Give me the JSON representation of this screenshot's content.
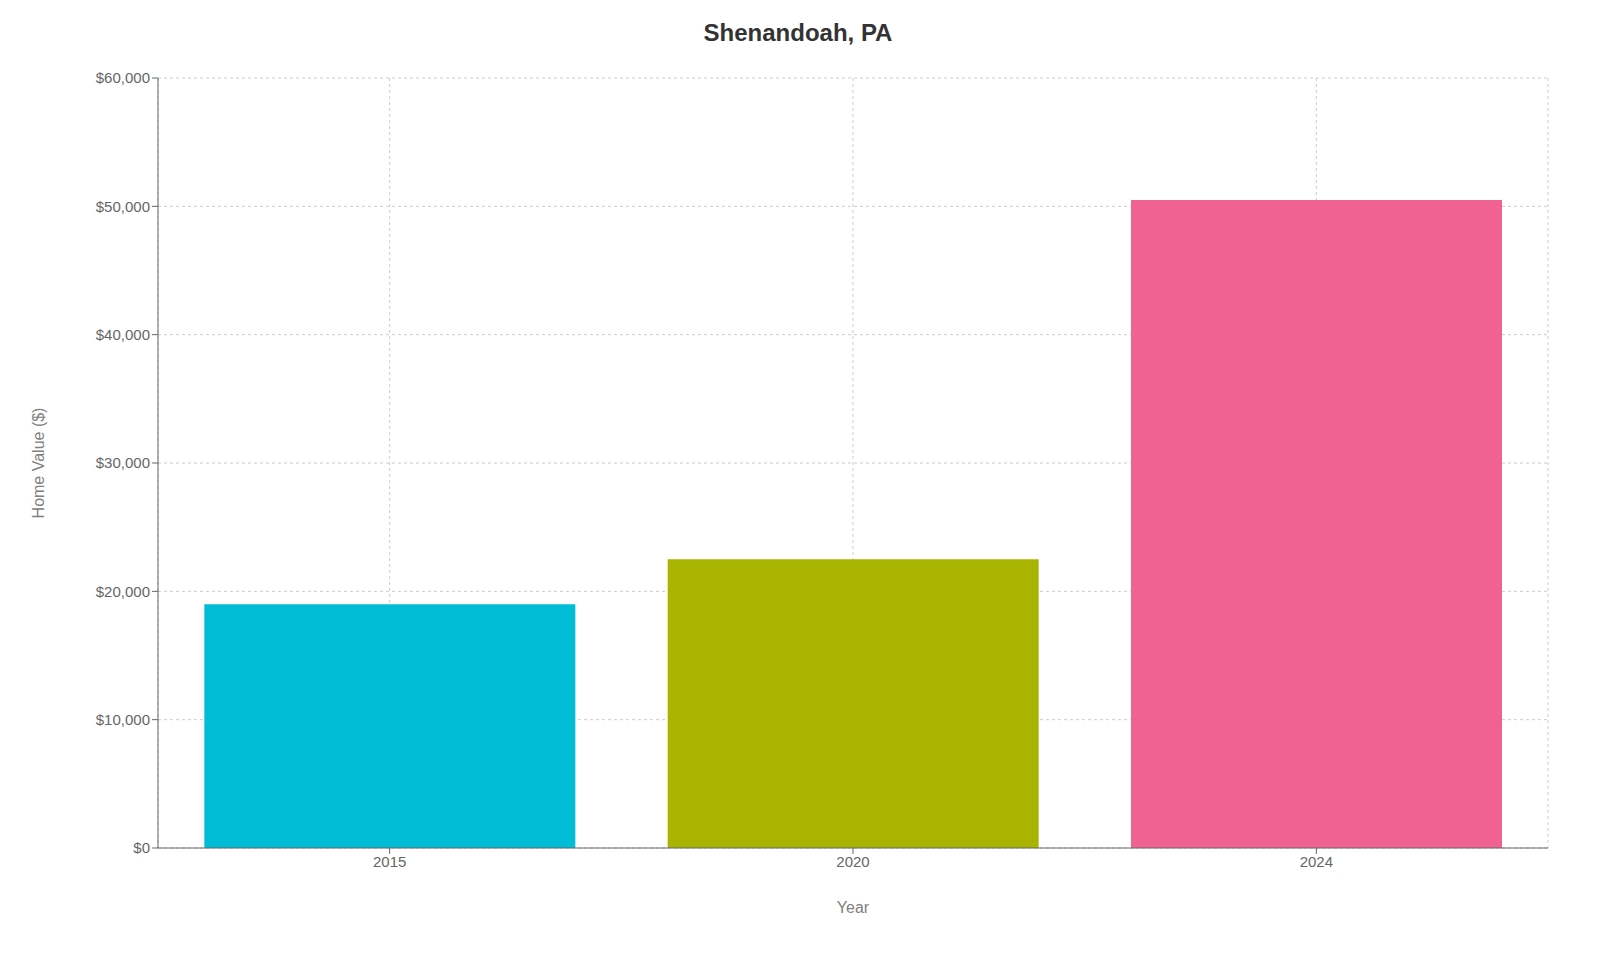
{
  "chart_data": {
    "type": "bar",
    "title": "Shenandoah, PA",
    "xlabel": "Year",
    "ylabel": "Home Value ($)",
    "categories": [
      "2015",
      "2020",
      "2024"
    ],
    "values": [
      19000,
      22500,
      50500
    ],
    "colors": [
      "#00BCD4",
      "#A8B400",
      "#F06292"
    ],
    "ylim": [
      0,
      60000
    ],
    "yticks": [
      {
        "value": 0,
        "label": "$0"
      },
      {
        "value": 10000,
        "label": "$10,000"
      },
      {
        "value": 20000,
        "label": "$20,000"
      },
      {
        "value": 30000,
        "label": "$30,000"
      },
      {
        "value": 40000,
        "label": "$40,000"
      },
      {
        "value": 50000,
        "label": "$50,000"
      },
      {
        "value": 60000,
        "label": "$60,000"
      }
    ],
    "grid": true
  }
}
